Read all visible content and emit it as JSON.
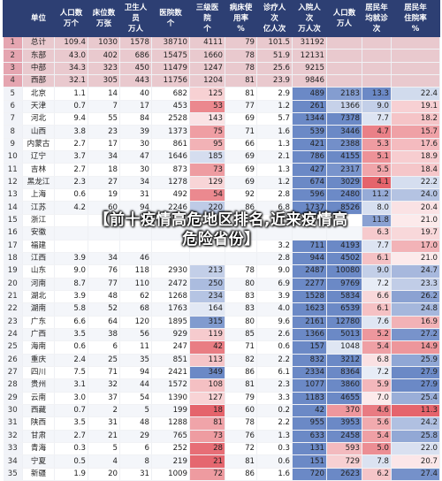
{
  "headers": [
    {
      "lines": [
        "",
        "单位"
      ]
    },
    {
      "lines": [
        "人口数",
        "万个"
      ]
    },
    {
      "lines": [
        "床位数",
        "万张"
      ]
    },
    {
      "lines": [
        "卫生人",
        "员",
        "万人"
      ]
    },
    {
      "lines": [
        "医院数",
        "个"
      ]
    },
    {
      "lines": [
        "三级医",
        "院",
        "个"
      ]
    },
    {
      "lines": [
        "病床使",
        "用率",
        "%"
      ]
    },
    {
      "lines": [
        "诊疗人",
        "次",
        "亿人次"
      ]
    },
    {
      "lines": [
        "入院人",
        "次",
        "万人次"
      ]
    },
    {
      "lines": [
        "人口数",
        "万人"
      ]
    },
    {
      "lines": [
        "居民年",
        "均就诊",
        "次"
      ]
    },
    {
      "lines": [
        "居民年",
        "住院率",
        "%"
      ]
    }
  ],
  "rows": [
    {
      "idx": "1",
      "region": "总计",
      "v": [
        "109.4",
        "1030",
        "1578",
        "38710",
        "4111",
        "79",
        "101.5",
        "31192",
        "",
        "",
        ""
      ]
    },
    {
      "idx": "2",
      "region": "东部",
      "v": [
        "43.0",
        "402",
        "686",
        "15475",
        "1660",
        "78",
        "51.9",
        "12131",
        "",
        "",
        ""
      ]
    },
    {
      "idx": "3",
      "region": "中部",
      "v": [
        "34.3",
        "323",
        "450",
        "11479",
        "1247",
        "78",
        "25.6",
        "9215",
        "",
        "",
        ""
      ]
    },
    {
      "idx": "4",
      "region": "西部",
      "v": [
        "32.1",
        "305",
        "443",
        "11756",
        "1204",
        "81",
        "23.9",
        "9846",
        "",
        "",
        ""
      ]
    },
    {
      "idx": "5",
      "region": "北京",
      "v": [
        "1.1",
        "14",
        "40",
        "682",
        "125",
        "81",
        "2.9",
        "489",
        "2183",
        "13.3",
        "22.4"
      ]
    },
    {
      "idx": "6",
      "region": "天津",
      "v": [
        "0.7",
        "7",
        "17",
        "453",
        "53",
        "77",
        "1.2",
        "261",
        "1366",
        "9.0",
        "19.1"
      ]
    },
    {
      "idx": "7",
      "region": "河北",
      "v": [
        "9.4",
        "55",
        "84",
        "2528",
        "143",
        "69",
        "5.7",
        "1344",
        "7378",
        "7.7",
        "18.2"
      ]
    },
    {
      "idx": "8",
      "region": "山西",
      "v": [
        "3.8",
        "23",
        "39",
        "1373",
        "75",
        "71",
        "1.6",
        "539",
        "3446",
        "4.7",
        "15.7"
      ]
    },
    {
      "idx": "9",
      "region": "内蒙古",
      "v": [
        "2.7",
        "17",
        "30",
        "861",
        "95",
        "66",
        "1.3",
        "421",
        "2388",
        "5.3",
        "17.6"
      ]
    },
    {
      "idx": "10",
      "region": "辽宁",
      "v": [
        "3.7",
        "34",
        "47",
        "1646",
        "185",
        "69",
        "2.1",
        "786",
        "4155",
        "5.1",
        "18.9"
      ]
    },
    {
      "idx": "11",
      "region": "吉林",
      "v": [
        "2.7",
        "18",
        "30",
        "873",
        "73",
        "69",
        "1.3",
        "427",
        "2317",
        "5.5",
        "18.4"
      ]
    },
    {
      "idx": "12",
      "region": "黑龙江",
      "v": [
        "2.3",
        "27",
        "34",
        "1278",
        "129",
        "69",
        "1.2",
        "674",
        "3029",
        "4.1",
        "22.2"
      ]
    },
    {
      "idx": "13",
      "region": "上海",
      "v": [
        "0.6",
        "19",
        "31",
        "492",
        "54",
        "92",
        "2.8",
        "596",
        "2480",
        "11.2",
        "24.0"
      ]
    },
    {
      "idx": "14",
      "region": "江苏",
      "v": [
        "4.2",
        "60",
        "94",
        "2246",
        "220",
        "86",
        "6.8",
        "1737",
        "8526",
        "8.0",
        "20.4"
      ]
    },
    {
      "idx": "15",
      "region": "浙江",
      "v": [
        "",
        "",
        "",
        "",
        "",
        "",
        "",
        "",
        "",
        "11.8",
        "21.0"
      ]
    },
    {
      "idx": "16",
      "region": "安徽",
      "v": [
        "",
        "",
        "",
        "",
        "",
        "",
        "",
        "",
        "",
        "6.3",
        "19.7"
      ]
    },
    {
      "idx": "17",
      "region": "福建",
      "v": [
        "",
        "",
        "",
        "",
        "",
        "",
        "3.2",
        "711",
        "4193",
        "7.7",
        "17.0"
      ]
    },
    {
      "idx": "18",
      "region": "江西",
      "v": [
        "3.9",
        "34",
        "46",
        "",
        "",
        "",
        "2.8",
        "944",
        "4502",
        "6.1",
        "21.0"
      ]
    },
    {
      "idx": "19",
      "region": "山东",
      "v": [
        "9.0",
        "76",
        "118",
        "2930",
        "213",
        "78",
        "9.0",
        "2487",
        "10080",
        "9.0",
        "24.7"
      ]
    },
    {
      "idx": "20",
      "region": "河南",
      "v": [
        "8.7",
        "77",
        "110",
        "2472",
        "250",
        "80",
        "6.9",
        "2277",
        "9769",
        "7.2",
        "23.3"
      ]
    },
    {
      "idx": "21",
      "region": "湖北",
      "v": [
        "3.9",
        "48",
        "62",
        "1268",
        "234",
        "83",
        "3.9",
        "1528",
        "5834",
        "6.6",
        "26.2"
      ]
    },
    {
      "idx": "22",
      "region": "湖南",
      "v": [
        "5.8",
        "52",
        "68",
        "1763",
        "164",
        "83",
        "4.0",
        "1623",
        "6539",
        "6.1",
        "24.8"
      ]
    },
    {
      "idx": "23",
      "region": "广东",
      "v": [
        "6.6",
        "64",
        "120",
        "1895",
        "315",
        "80",
        "9.6",
        "2161",
        "12780",
        "7.6",
        "16.9"
      ]
    },
    {
      "idx": "24",
      "region": "广西",
      "v": [
        "3.5",
        "38",
        "56",
        "929",
        "119",
        "85",
        "2.6",
        "1366",
        "5013",
        "5.2",
        "27.2"
      ]
    },
    {
      "idx": "25",
      "region": "海南",
      "v": [
        "0.6",
        "6",
        "11",
        "247",
        "42",
        "71",
        "0.6",
        "157",
        "1048",
        "5.4",
        "14.9"
      ]
    },
    {
      "idx": "26",
      "region": "重庆",
      "v": [
        "2.4",
        "25",
        "35",
        "851",
        "113",
        "82",
        "2.2",
        "832",
        "3212",
        "6.8",
        "25.9"
      ]
    },
    {
      "idx": "27",
      "region": "四川",
      "v": [
        "7.5",
        "71",
        "94",
        "2421",
        "349",
        "86",
        "6.1",
        "2334",
        "8364",
        "7.2",
        "27.9"
      ]
    },
    {
      "idx": "28",
      "region": "贵州",
      "v": [
        "3.1",
        "32",
        "44",
        "1572",
        "108",
        "81",
        "2.3",
        "1077",
        "3860",
        "5.9",
        "27.9"
      ]
    },
    {
      "idx": "29",
      "region": "云南",
      "v": [
        "3.0",
        "37",
        "54",
        "1390",
        "127",
        "79",
        "3.3",
        "1183",
        "4655",
        "7.0",
        "25.4"
      ]
    },
    {
      "idx": "30",
      "region": "西藏",
      "v": [
        "0.7",
        "2",
        "5",
        "199",
        "18",
        "60",
        "0.2",
        "42",
        "370",
        "4.6",
        "11.3"
      ]
    },
    {
      "idx": "31",
      "region": "陕西",
      "v": [
        "3.5",
        "31",
        "48",
        "1288",
        "81",
        "78",
        "2.2",
        "955",
        "3953",
        "5.6",
        "24.2"
      ]
    },
    {
      "idx": "32",
      "region": "甘肃",
      "v": [
        "2.7",
        "21",
        "29",
        "765",
        "73",
        "76",
        "1.3",
        "633",
        "2458",
        "5.4",
        "25.8"
      ]
    },
    {
      "idx": "33",
      "region": "青海",
      "v": [
        "0.3",
        "5",
        "6",
        "252",
        "28",
        "72",
        "0.3",
        "131",
        "593",
        "5.0",
        "22.0"
      ]
    },
    {
      "idx": "34",
      "region": "宁夏",
      "v": [
        "0.5",
        "4",
        "8",
        "219",
        "21",
        "81",
        "0.6",
        "151",
        "729",
        "7.8",
        "20.7"
      ]
    },
    {
      "idx": "35",
      "region": "新疆",
      "v": [
        "1.9",
        "20",
        "31",
        "1009",
        "72",
        "86",
        "1.6",
        "720",
        "2623",
        "6.2",
        "27.4"
      ]
    }
  ],
  "overlay": {
    "line1": "【前十疫情高危地区排名,近来疫情高",
    "line2": "危险省份】"
  },
  "colors": {
    "header_bg": "#2d3f73",
    "red_strong": "#e2535c",
    "red_light": "#f8dada",
    "blue_strong": "#5b7cc0",
    "blue_light": "#dbe3f3"
  }
}
